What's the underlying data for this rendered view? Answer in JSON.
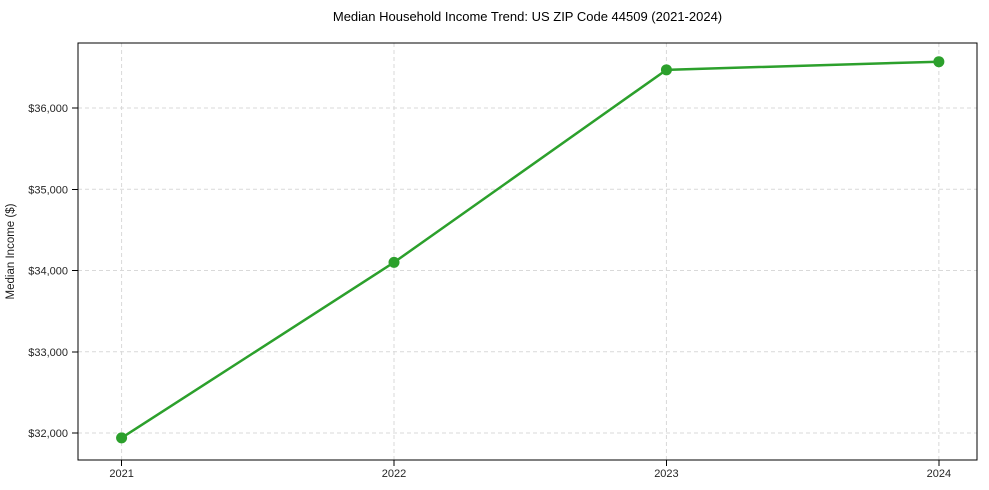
{
  "figure": {
    "background": "#ffffff"
  },
  "chart_data": {
    "type": "line",
    "title": "Median Household Income Trend: US ZIP Code 44509 (2021-2024)",
    "xlabel": "",
    "ylabel": "Median Income ($)",
    "x": [
      2021,
      2022,
      2023,
      2024
    ],
    "xtick_labels": [
      "2021",
      "2022",
      "2023",
      "2024"
    ],
    "values": [
      31940,
      34100,
      36470,
      36570
    ],
    "line_color": "#2ca02c",
    "marker": "circle",
    "marker_color": "#2ca02c",
    "ytick_values": [
      32000,
      33000,
      34000,
      35000,
      36000
    ],
    "ytick_labels": [
      "$32,000",
      "$33,000",
      "$34,000",
      "$35,000",
      "$36,000"
    ],
    "xlim": [
      2020.84,
      2024.14
    ],
    "ylim": [
      31668,
      36800
    ],
    "grid": true,
    "grid_style": "dashed",
    "grid_color": "#d9d9d9",
    "axis_color": "#000000",
    "tick_label_color": "#262626",
    "legend": "none"
  }
}
